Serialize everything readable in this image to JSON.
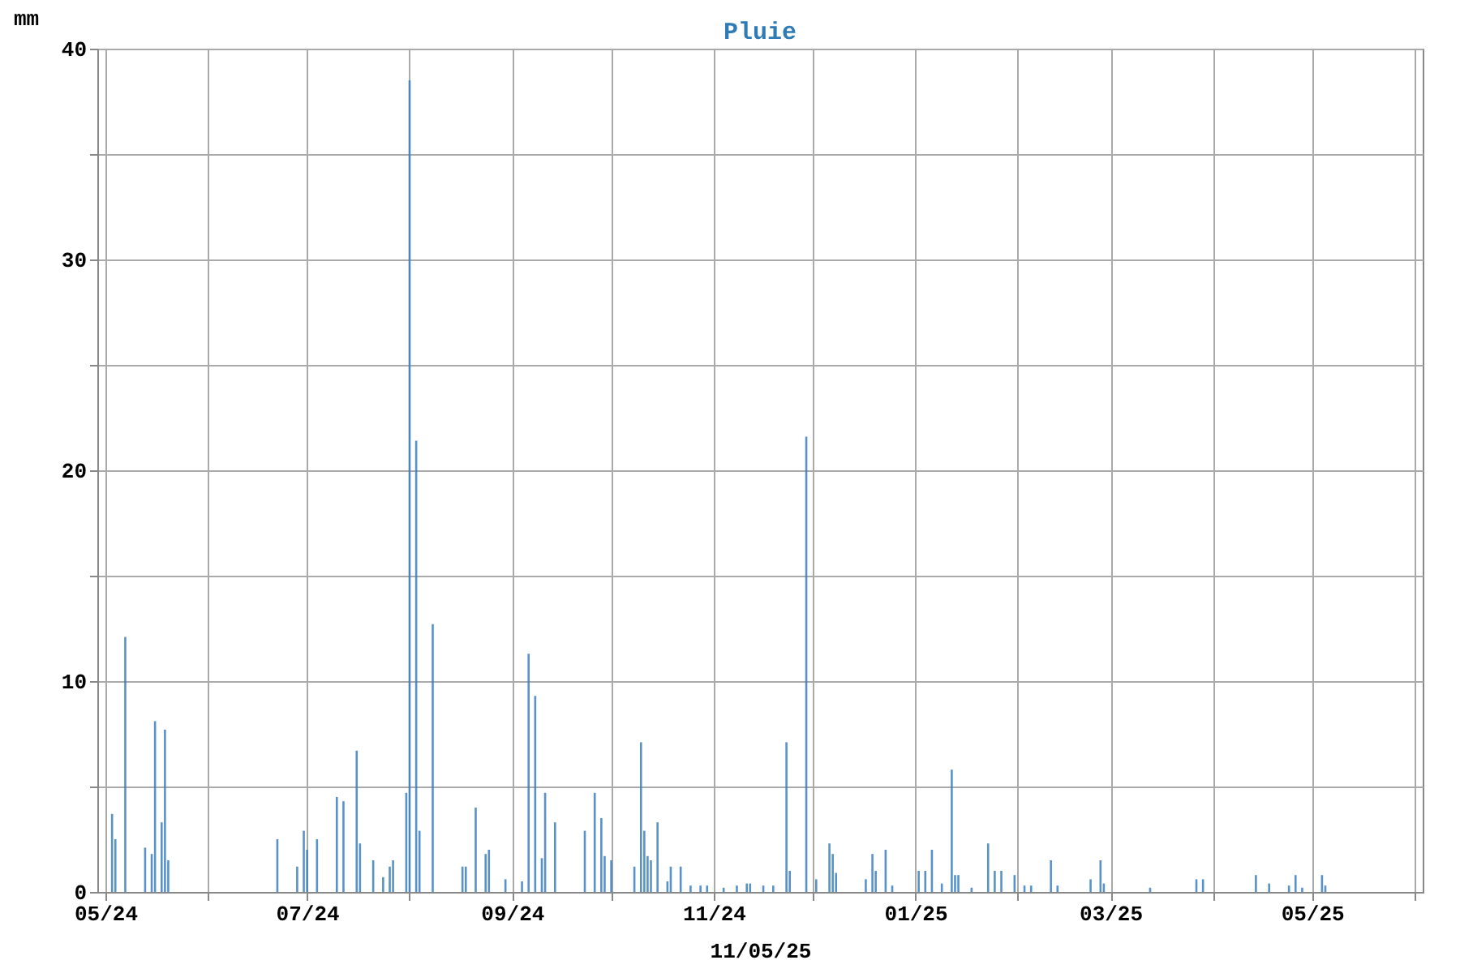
{
  "chart_data": {
    "type": "bar",
    "title": "Pluie",
    "xlabel": "11/05/25",
    "ylabel": "mm",
    "x": [
      "2024-05-03",
      "2024-05-04",
      "2024-05-07",
      "2024-05-13",
      "2024-05-15",
      "2024-05-16",
      "2024-05-18",
      "2024-05-19",
      "2024-05-20",
      "2024-06-22",
      "2024-06-28",
      "2024-06-30",
      "2024-07-01",
      "2024-07-04",
      "2024-07-10",
      "2024-07-12",
      "2024-07-16",
      "2024-07-17",
      "2024-07-21",
      "2024-07-24",
      "2024-07-26",
      "2024-07-27",
      "2024-07-31",
      "2024-08-01",
      "2024-08-03",
      "2024-08-04",
      "2024-08-08",
      "2024-08-17",
      "2024-08-18",
      "2024-08-21",
      "2024-08-24",
      "2024-08-25",
      "2024-08-30",
      "2024-09-04",
      "2024-09-06",
      "2024-09-08",
      "2024-09-10",
      "2024-09-11",
      "2024-09-14",
      "2024-09-23",
      "2024-09-26",
      "2024-09-28",
      "2024-09-29",
      "2024-10-01",
      "2024-10-08",
      "2024-10-10",
      "2024-10-11",
      "2024-10-12",
      "2024-10-13",
      "2024-10-15",
      "2024-10-18",
      "2024-10-19",
      "2024-10-22",
      "2024-10-25",
      "2024-10-28",
      "2024-10-30",
      "2024-11-04",
      "2024-11-08",
      "2024-11-11",
      "2024-11-12",
      "2024-11-16",
      "2024-11-19",
      "2024-11-23",
      "2024-11-24",
      "2024-11-29",
      "2024-12-02",
      "2024-12-06",
      "2024-12-07",
      "2024-12-08",
      "2024-12-17",
      "2024-12-19",
      "2024-12-20",
      "2024-12-23",
      "2024-12-25",
      "2025-01-02",
      "2025-01-04",
      "2025-01-06",
      "2025-01-09",
      "2025-01-12",
      "2025-01-13",
      "2025-01-14",
      "2025-01-18",
      "2025-01-23",
      "2025-01-25",
      "2025-01-27",
      "2025-01-31",
      "2025-02-03",
      "2025-02-05",
      "2025-02-11",
      "2025-02-13",
      "2025-02-23",
      "2025-02-26",
      "2025-02-27",
      "2025-03-13",
      "2025-03-27",
      "2025-03-29",
      "2025-04-14",
      "2025-04-18",
      "2025-04-24",
      "2025-04-26",
      "2025-04-28",
      "2025-05-04",
      "2025-05-05"
    ],
    "series": [
      {
        "color": "#3b7fbf",
        "values": [
          3.7,
          2.5,
          12.1,
          2.1,
          1.8,
          8.1,
          3.3,
          7.7,
          1.5,
          2.5,
          1.2,
          2.9,
          2.0,
          2.5,
          4.5,
          4.3,
          6.7,
          2.3,
          1.5,
          0.7,
          1.2,
          1.5,
          4.7,
          38.5,
          21.4,
          2.9,
          12.7,
          1.2,
          1.2,
          4.0,
          1.8,
          2.0,
          0.6,
          0.5,
          11.3,
          9.3,
          1.6,
          4.7,
          3.3,
          2.9,
          4.7,
          3.5,
          1.7,
          1.5,
          1.2,
          7.1,
          2.9,
          1.7,
          1.5,
          3.3,
          0.5,
          1.2,
          1.2,
          0.3,
          0.3,
          0.3,
          0.2,
          0.3,
          0.4,
          0.4,
          0.3,
          0.3,
          7.1,
          1.0,
          21.6,
          0.6,
          2.3,
          1.8,
          0.9,
          0.6,
          1.8,
          1.0,
          2.0,
          0.3,
          1.0,
          1.0,
          2.0,
          0.4,
          5.8,
          0.8,
          0.8,
          0.2,
          2.3,
          1.0,
          1.0,
          0.8,
          0.3,
          0.3,
          1.5,
          0.3,
          0.6,
          1.5,
          0.4,
          0.2,
          0.6,
          0.6,
          0.8,
          0.4,
          0.3,
          0.8,
          0.2,
          0.8,
          0.3
        ]
      }
    ],
    "xlim": [
      "2024-05-01",
      "2025-06-01"
    ],
    "xticks": [
      {
        "value": "2024-05-01",
        "label": "05/24"
      },
      {
        "value": "2024-06-01",
        "label": null
      },
      {
        "value": "2024-07-01",
        "label": "07/24"
      },
      {
        "value": "2024-08-01",
        "label": null
      },
      {
        "value": "2024-09-01",
        "label": "09/24"
      },
      {
        "value": "2024-10-01",
        "label": null
      },
      {
        "value": "2024-11-01",
        "label": "11/24"
      },
      {
        "value": "2024-12-01",
        "label": null
      },
      {
        "value": "2025-01-01",
        "label": "01/25"
      },
      {
        "value": "2025-02-01",
        "label": null
      },
      {
        "value": "2025-03-01",
        "label": "03/25"
      },
      {
        "value": "2025-04-01",
        "label": null
      },
      {
        "value": "2025-05-01",
        "label": "05/25"
      },
      {
        "value": "2025-06-01",
        "label": null
      }
    ],
    "ylim": [
      0,
      40
    ],
    "yticks": [
      0,
      {
        "value": 5,
        "label": null
      },
      10,
      {
        "value": 15,
        "label": null
      },
      20,
      {
        "value": 25,
        "label": null
      },
      30,
      {
        "value": 35,
        "label": null
      },
      40
    ],
    "grid": true
  }
}
